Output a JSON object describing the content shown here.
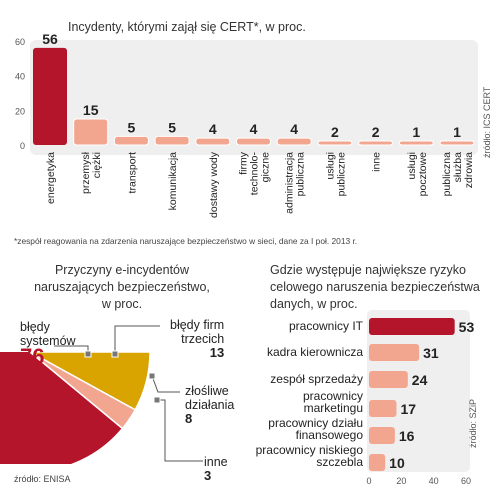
{
  "chart_data": [
    {
      "type": "bar",
      "title": "Incydenty, którymi zajął się CERT*, w proc.",
      "categories": [
        "energetyka",
        "przemysł ciężki",
        "transport",
        "komunikacja",
        "dostawy wody",
        "firmy technolo-giczne",
        "administracja publiczna",
        "usługi publiczne",
        "inne",
        "usługi pocztowe",
        "publiczna służba zdrowia"
      ],
      "category_lines": [
        [
          "energetyka"
        ],
        [
          "przemysł",
          "ciężki"
        ],
        [
          "transport"
        ],
        [
          "komunikacja"
        ],
        [
          "dostawy wody"
        ],
        [
          "firmy",
          "technolo-",
          "giczne"
        ],
        [
          "administracja",
          "publiczna"
        ],
        [
          "usługi",
          "publiczne"
        ],
        [
          "inne"
        ],
        [
          "usługi",
          "pocztowe"
        ],
        [
          "publiczna",
          "służba",
          "zdrowia"
        ]
      ],
      "values": [
        56,
        15,
        5,
        5,
        4,
        4,
        4,
        2,
        2,
        1,
        1
      ],
      "ylim": [
        0,
        60
      ],
      "yticks": [
        0,
        20,
        40,
        60
      ],
      "source": "źródło: ICS CERT",
      "footnote": "*zespół reagowania na zdarzenia naruszające bezpieczeństwo w sieci, dane za I poł. 2013 r.",
      "colors": {
        "highlight": "#b5152b",
        "bar": "#f2a58f",
        "panel": "#efefef"
      }
    },
    {
      "type": "pie",
      "title_lines": [
        "Przyczyny e-incydentów",
        "naruszających bezpieczeństwo,",
        "w proc."
      ],
      "slices": [
        {
          "label_lines": [
            "błędy",
            "systemów"
          ],
          "value": 76,
          "color": "#b5152b"
        },
        {
          "label_lines": [
            "błędy firm",
            "trzecich"
          ],
          "value": 13,
          "color": "#f2a58f"
        },
        {
          "label_lines": [
            "złośliwe",
            "działania"
          ],
          "value": 8,
          "color": "#d9a300"
        },
        {
          "label_lines": [
            "inne"
          ],
          "value": 3,
          "color": "#f2a58f"
        }
      ],
      "source": "źródło: ENISA"
    },
    {
      "type": "bar",
      "orientation": "horizontal",
      "title_lines": [
        "Gdzie występuje największe ryzyko",
        "celowego naruszenia bezpieczeństwa",
        "danych, w proc."
      ],
      "bars": [
        {
          "label_lines": [
            "pracownicy IT"
          ],
          "value": 53
        },
        {
          "label_lines": [
            "kadra kierownicza"
          ],
          "value": 31
        },
        {
          "label_lines": [
            "zespół sprzedaży"
          ],
          "value": 24
        },
        {
          "label_lines": [
            "pracownicy",
            "marketingu"
          ],
          "value": 17
        },
        {
          "label_lines": [
            "pracownicy działu",
            "finansowego"
          ],
          "value": 16
        },
        {
          "label_lines": [
            "pracownicy niskiego",
            "szczebla"
          ],
          "value": 10
        }
      ],
      "xlim": [
        0,
        60
      ],
      "xticks": [
        0,
        20,
        40,
        60
      ],
      "source": "źródło: SZiP",
      "colors": {
        "highlight": "#b5152b",
        "bar": "#f2a58f",
        "panel": "#efefef"
      }
    }
  ]
}
